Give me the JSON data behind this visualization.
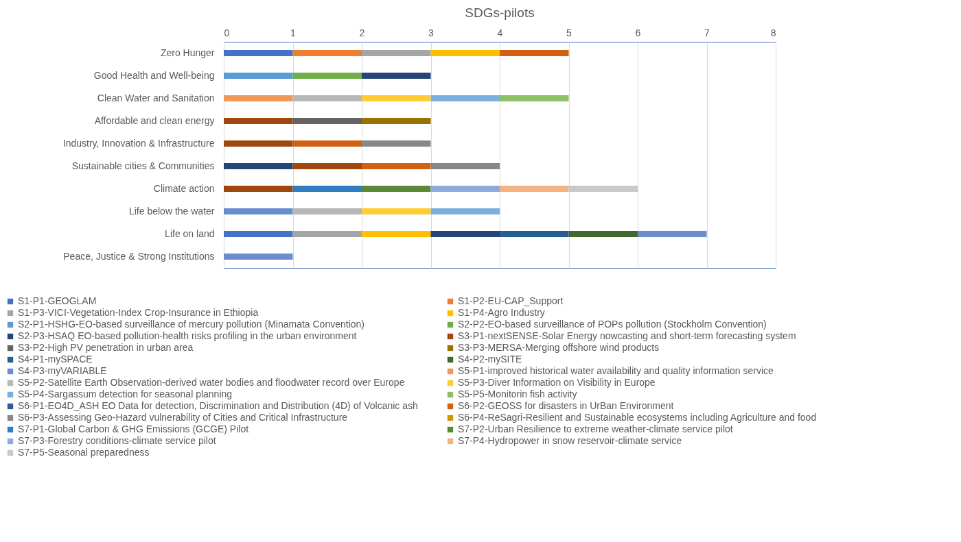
{
  "chart_data": {
    "type": "bar",
    "title": "SDGs-pilots",
    "orientation": "horizontal",
    "stacked": true,
    "grid": "x",
    "legend": "bottom",
    "categories": [
      "Zero Hunger",
      "Good Health and Well-being",
      "Clean Water and Sanitation ",
      "Affordable and clean energy",
      "Industry, Innovation & Infrastructure",
      "Sustainable cities & Communities",
      "Climate action",
      "Life below the water",
      "Life on land",
      "Peace, Justice & Strong Institutions"
    ],
    "xlim": [
      0,
      8
    ],
    "xticks": [
      0,
      1,
      2,
      3,
      4,
      5,
      6,
      7,
      8
    ],
    "series": [
      {
        "name": "S1-P1-GEOGLAM",
        "color": "#4472c4",
        "values": [
          1,
          null,
          null,
          null,
          null,
          null,
          null,
          null,
          1,
          null
        ]
      },
      {
        "name": "S1-P2-EU-CAP_Support",
        "color": "#ed7d31",
        "values": [
          1,
          null,
          null,
          null,
          null,
          null,
          null,
          null,
          null,
          null
        ]
      },
      {
        "name": "S1-P3-VICI-Vegetation-Index Crop-Insurance in Ethiopia",
        "color": "#a5a5a5",
        "values": [
          1,
          null,
          null,
          null,
          null,
          null,
          null,
          null,
          1,
          null
        ]
      },
      {
        "name": "S1-P4-Agro Industry",
        "color": "#ffc000",
        "values": [
          1,
          null,
          null,
          null,
          null,
          null,
          null,
          null,
          1,
          null
        ]
      },
      {
        "name": "S2-P1-HSHG-EO-based surveillance of mercury pollution (Minamata Convention)",
        "color": "#5b9bd5",
        "values": [
          null,
          1,
          null,
          null,
          null,
          null,
          null,
          null,
          null,
          null
        ]
      },
      {
        "name": "S2-P2-EO-based surveillance of POPs pollution (Stockholm Convention)",
        "color": "#70ad47",
        "values": [
          null,
          1,
          null,
          null,
          null,
          null,
          null,
          null,
          null,
          null
        ]
      },
      {
        "name": "S2-P3-HSAQ EO-based pollution-health risks profiling in the urban environment",
        "color": "#264478",
        "values": [
          null,
          1,
          null,
          null,
          null,
          1,
          null,
          null,
          1,
          null
        ]
      },
      {
        "name": "S3-P1-nextSENSE-Solar Energy nowcasting and short-term forecasting system",
        "color": "#9e480e",
        "values": [
          null,
          null,
          null,
          1,
          1,
          1,
          1,
          null,
          null,
          null
        ]
      },
      {
        "name": "S3-P2-High PV penetration in urban area",
        "color": "#636363",
        "values": [
          null,
          null,
          null,
          1,
          null,
          null,
          null,
          null,
          null,
          null
        ]
      },
      {
        "name": "S3-P3-MERSA-Merging offshore wind products",
        "color": "#997300",
        "values": [
          null,
          null,
          null,
          1,
          null,
          null,
          null,
          null,
          null,
          null
        ]
      },
      {
        "name": "S4-P1-mySPACE",
        "color": "#255e91",
        "values": [
          null,
          null,
          null,
          null,
          null,
          null,
          null,
          null,
          1,
          null
        ]
      },
      {
        "name": "S4-P2-mySITE",
        "color": "#43682b",
        "values": [
          null,
          null,
          null,
          null,
          null,
          null,
          null,
          null,
          1,
          null
        ]
      },
      {
        "name": "S4-P3-myVARIABLE",
        "color": "#698ed0",
        "values": [
          null,
          null,
          null,
          null,
          null,
          null,
          null,
          1,
          1,
          1
        ]
      },
      {
        "name": "S5-P1-improved historical water availability and quality information service",
        "color": "#f1975a",
        "values": [
          null,
          null,
          1,
          null,
          null,
          null,
          null,
          null,
          null,
          null
        ]
      },
      {
        "name": "S5-P2-Satellite Earth Observation-derived water bodies and floodwater record over Europe",
        "color": "#b7b7b7",
        "values": [
          null,
          null,
          1,
          null,
          null,
          null,
          null,
          1,
          null,
          null
        ]
      },
      {
        "name": "S5-P3-Diver Information on Visibility in Europe",
        "color": "#ffcd33",
        "values": [
          null,
          null,
          1,
          null,
          null,
          null,
          null,
          1,
          null,
          null
        ]
      },
      {
        "name": "S5-P4-Sargassum detection for seasonal planning",
        "color": "#7cafdd",
        "values": [
          null,
          null,
          1,
          null,
          null,
          null,
          null,
          1,
          null,
          null
        ]
      },
      {
        "name": "S5-P5-Monitorin fish activity",
        "color": "#8cc168",
        "values": [
          null,
          null,
          1,
          null,
          null,
          null,
          null,
          null,
          null,
          null
        ]
      },
      {
        "name": "S6-P1-EO4D_ASH EO Data for detection, Discrimination and Distribution (4D) of Volcanic ash",
        "color": "#335aa1",
        "values": [
          null,
          null,
          null,
          null,
          null,
          null,
          null,
          null,
          null,
          null
        ]
      },
      {
        "name": "S6-P2-GEOSS for disasters in UrBan Environment",
        "color": "#d26012",
        "values": [
          1,
          null,
          null,
          null,
          1,
          1,
          null,
          null,
          null,
          null
        ]
      },
      {
        "name": "S6-P3-Assessing Geo-Hazard vulnerability of Cities and Critical Infrastructure",
        "color": "#878787",
        "values": [
          null,
          null,
          null,
          null,
          1,
          1,
          null,
          null,
          null,
          null
        ]
      },
      {
        "name": "S6-P4-ReSagri-Resilient and Sustainable ecosystems including Agriculture and food",
        "color": "#cc9a00",
        "values": [
          null,
          null,
          null,
          null,
          null,
          null,
          null,
          null,
          null,
          null
        ]
      },
      {
        "name": "S7-P1-Global Carbon & GHG Emissions (GCGE) Pilot",
        "color": "#327dc2",
        "values": [
          null,
          null,
          null,
          null,
          null,
          null,
          1,
          null,
          null,
          null
        ]
      },
      {
        "name": "S7-P2-Urban Resilience to extreme weather-climate service pilot",
        "color": "#5a8a39",
        "values": [
          null,
          null,
          null,
          null,
          null,
          null,
          1,
          null,
          null,
          null
        ]
      },
      {
        "name": "S7-P3-Forestry conditions-climate service pilot",
        "color": "#8faadc",
        "values": [
          null,
          null,
          null,
          null,
          null,
          null,
          1,
          null,
          null,
          null
        ]
      },
      {
        "name": "S7-P4-Hydropower in snow reservoir-climate service",
        "color": "#f4b183",
        "values": [
          null,
          null,
          null,
          null,
          null,
          null,
          1,
          null,
          null,
          null
        ]
      },
      {
        "name": "S7-P5-Seasonal preparedness",
        "color": "#c9c9c9",
        "values": [
          null,
          null,
          null,
          null,
          null,
          null,
          1,
          null,
          null,
          null
        ]
      }
    ]
  }
}
